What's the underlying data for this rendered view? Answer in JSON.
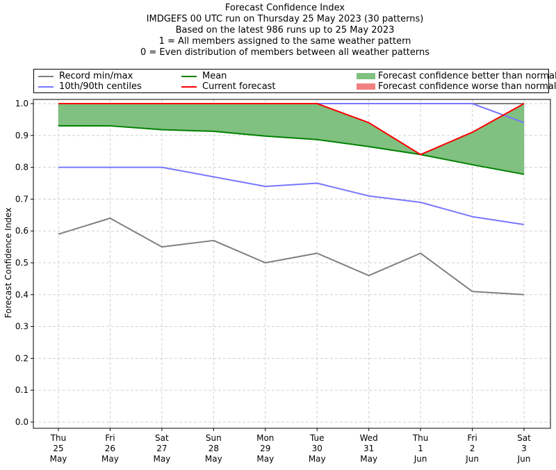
{
  "chart_data": {
    "type": "line",
    "title": "Forecast Confidence Index",
    "subtitle_lines": [
      "IMDGEFS 00 UTC run on Thursday 25 May 2023 (30 patterns)",
      "Based on the latest 986 runs up to 25 May 2023",
      "1 = All members assigned to the same weather pattern",
      "0 = Even distribution of members between all weather patterns"
    ],
    "xlabel": "",
    "ylabel": "Forecast Confidence Index",
    "ylim": [
      0.0,
      1.0
    ],
    "yticks": [
      "0.0",
      "0.1",
      "0.2",
      "0.3",
      "0.4",
      "0.5",
      "0.6",
      "0.7",
      "0.8",
      "0.9",
      "1.0"
    ],
    "categories": [
      [
        "Thu",
        "25",
        "May"
      ],
      [
        "Fri",
        "26",
        "May"
      ],
      [
        "Sat",
        "27",
        "May"
      ],
      [
        "Sun",
        "28",
        "May"
      ],
      [
        "Mon",
        "29",
        "May"
      ],
      [
        "Tue",
        "30",
        "May"
      ],
      [
        "Wed",
        "31",
        "May"
      ],
      [
        "Thu",
        "1",
        "Jun"
      ],
      [
        "Fri",
        "2",
        "Jun"
      ],
      [
        "Sat",
        "3",
        "Jun"
      ]
    ],
    "grid": true,
    "legend_position": "top (above plot, 3 columns)",
    "series": [
      {
        "name": "Record min",
        "legend": "Record min/max",
        "color": "#7f7f7f",
        "values": [
          0.59,
          0.64,
          0.55,
          0.57,
          0.5,
          0.53,
          0.46,
          0.53,
          0.41,
          0.4
        ]
      },
      {
        "name": "Record max",
        "legend": "Record min/max",
        "color": "#7f7f7f",
        "values": [
          1.0,
          1.0,
          1.0,
          1.0,
          1.0,
          1.0,
          1.0,
          1.0,
          1.0,
          1.0
        ]
      },
      {
        "name": "10th centile",
        "legend": "10th/90th centiles",
        "color": "#7777ff",
        "values": [
          0.8,
          0.8,
          0.8,
          0.77,
          0.74,
          0.75,
          0.71,
          0.69,
          0.645,
          0.62
        ]
      },
      {
        "name": "90th centile",
        "legend": "10th/90th centiles",
        "color": "#7777ff",
        "values": [
          1.0,
          1.0,
          1.0,
          1.0,
          1.0,
          1.0,
          1.0,
          1.0,
          1.0,
          0.94
        ]
      },
      {
        "name": "Mean",
        "legend": "Mean",
        "color": "#008000",
        "values": [
          0.93,
          0.93,
          0.918,
          0.913,
          0.898,
          0.887,
          0.865,
          0.84,
          0.808,
          0.778
        ]
      },
      {
        "name": "Current forecast",
        "legend": "Current forecast",
        "color": "#ff0000",
        "values": [
          1.0,
          1.0,
          1.0,
          1.0,
          1.0,
          1.0,
          0.94,
          0.84,
          0.91,
          1.0
        ]
      }
    ],
    "fills": [
      {
        "name": "Forecast confidence better than normal",
        "color": "#80c080",
        "between": [
          "Mean",
          "Current forecast"
        ],
        "where": "current > mean"
      },
      {
        "name": "Forecast confidence worse than normal",
        "color": "#f08080",
        "between": [
          "Mean",
          "Current forecast"
        ],
        "where": "current < mean"
      }
    ],
    "legend": [
      {
        "label": "Record min/max",
        "kind": "line",
        "color": "#7f7f7f"
      },
      {
        "label": "10th/90th centiles",
        "kind": "line",
        "color": "#7777ff"
      },
      {
        "label": "Mean",
        "kind": "line",
        "color": "#008000"
      },
      {
        "label": "Current forecast",
        "kind": "line",
        "color": "#ff0000"
      },
      {
        "label": "Forecast confidence better than normal",
        "kind": "patch",
        "color": "#80c080"
      },
      {
        "label": "Forecast confidence worse than normal",
        "kind": "patch",
        "color": "#f08080"
      }
    ]
  }
}
